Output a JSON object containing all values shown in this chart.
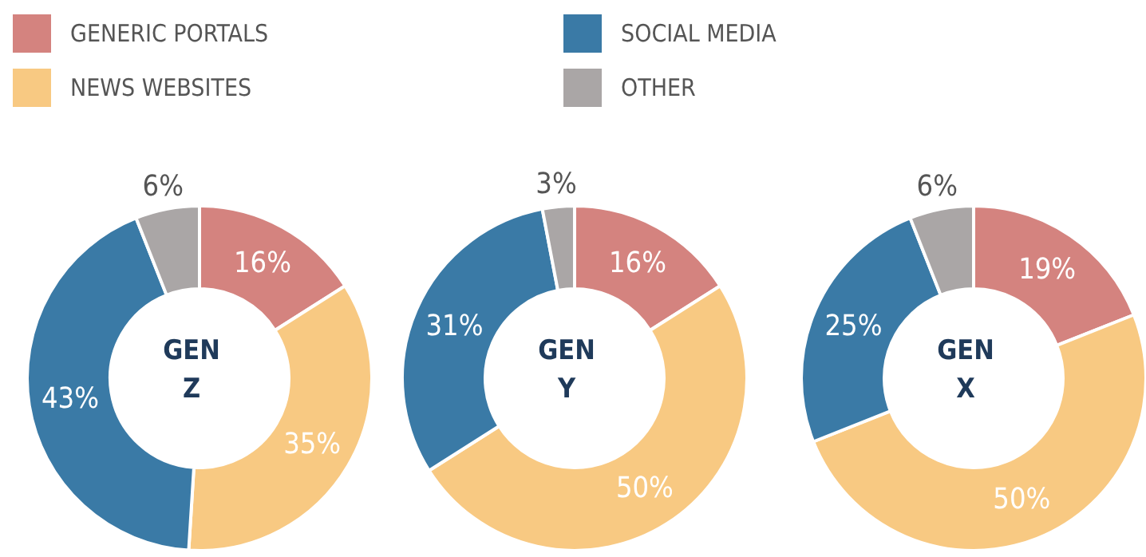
{
  "chart_data": [
    {
      "type": "donut",
      "title": "GEN Z",
      "categories": [
        "GENERIC PORTALS",
        "NEWS WEBSITES",
        "SOCIAL MEDIA",
        "OTHER"
      ],
      "values": [
        16,
        35,
        43,
        6
      ],
      "value_labels": [
        "16%",
        "35%",
        "43%",
        "6%"
      ],
      "colors": [
        "#d4837f",
        "#f8c982",
        "#3a7aa6",
        "#aaa6a6"
      ],
      "legend": "top"
    },
    {
      "type": "donut",
      "title": "GEN Y",
      "categories": [
        null,
        null,
        null,
        null
      ],
      "values": [
        16,
        50,
        31,
        3
      ],
      "value_labels": [
        "16%",
        "50%",
        "31%",
        "3%"
      ],
      "colors": [
        "#d4837f",
        "#f8c982",
        "#3a7aa6",
        "#aaa6a6"
      ]
    },
    {
      "type": "donut",
      "title": "GEN X",
      "categories": [
        null,
        null,
        null,
        null
      ],
      "values": [
        19,
        50,
        25,
        6
      ],
      "value_labels": [
        "19%",
        "50%",
        "25%",
        "6%"
      ],
      "colors": [
        "#d4837f",
        "#f8c982",
        "#3a7aa6",
        "#aaa6a6"
      ]
    }
  ]
}
